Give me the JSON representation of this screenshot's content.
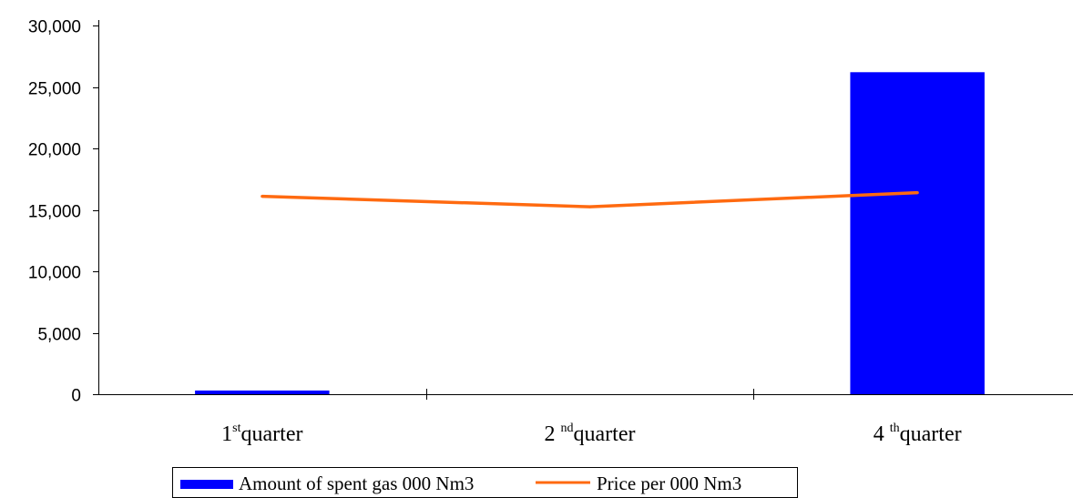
{
  "chart_data": {
    "type": "bar",
    "categories": [
      {
        "prefix": "1",
        "sup": "st",
        "suffix": "quarter"
      },
      {
        "prefix": "2 ",
        "sup": "nd",
        "suffix": "quarter"
      },
      {
        "prefix": "4 ",
        "sup": "th",
        "suffix": "quarter"
      }
    ],
    "series": [
      {
        "name": "Amount of spent gas 000 Nm3",
        "kind": "bar",
        "color": "#0000FF",
        "values": [
          300,
          0,
          26200
        ]
      },
      {
        "name": "Price per 000 Nm3",
        "kind": "line",
        "color": "#FF6A10",
        "values": [
          16100,
          15250,
          16400
        ]
      }
    ],
    "yticks": [
      "0",
      "5,000",
      "10,000",
      "15,000",
      "20,000",
      "25,000",
      "30,000"
    ],
    "ylim": [
      0,
      30000
    ],
    "grid": false,
    "legend_position": "bottom"
  }
}
